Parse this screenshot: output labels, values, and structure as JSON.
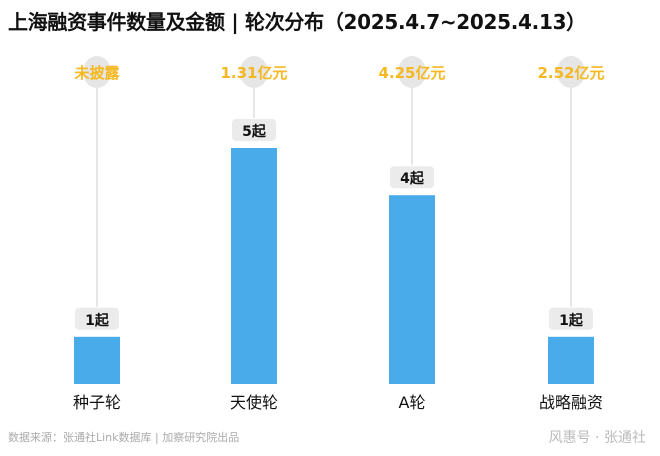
{
  "title": "上海融资事件数量及金额 | 轮次分布（2025.4.7~2025.4.13）",
  "footer": "数据来源：张通社Link数据库 | 加察研究院出品",
  "watermark": "风惠号 · 张通社",
  "colors": {
    "bar": "#4aabea",
    "amount": "#f5b820",
    "circle": "#e6e6e6",
    "label_bg": "#ebebeb"
  },
  "chart_data": {
    "type": "bar",
    "title": "上海融资事件数量及金额 | 轮次分布（2025.4.7~2025.4.13）",
    "categories": [
      "种子轮",
      "天使轮",
      "A轮",
      "战略融资"
    ],
    "values": [
      1,
      5,
      4,
      1
    ],
    "value_labels": [
      "1起",
      "5起",
      "4起",
      "1起"
    ],
    "amounts": [
      "未披露",
      "1.31亿元",
      "4.25亿元",
      "2.52亿元"
    ],
    "ylim": [
      0,
      5
    ],
    "unit": "起"
  }
}
